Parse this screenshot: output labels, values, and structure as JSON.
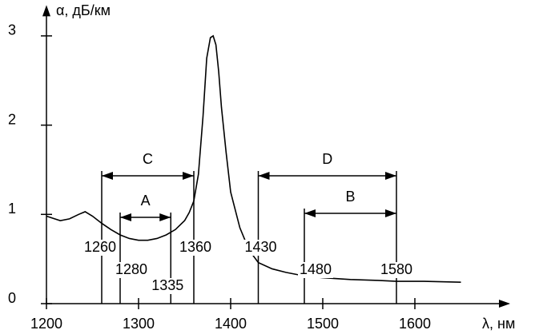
{
  "chart_data": {
    "type": "line",
    "x_label": "λ, нм",
    "y_label": "α, дБ/км",
    "x": [
      1200,
      1215,
      1225,
      1235,
      1242,
      1250,
      1260,
      1270,
      1280,
      1290,
      1300,
      1310,
      1320,
      1330,
      1340,
      1350,
      1355,
      1360,
      1365,
      1370,
      1374,
      1378,
      1381,
      1384,
      1387,
      1390,
      1395,
      1400,
      1410,
      1420,
      1430,
      1445,
      1460,
      1480,
      1500,
      1530,
      1560,
      1580,
      1610,
      1650
    ],
    "series": [
      {
        "color": "#000000",
        "values": [
          0.98,
          0.93,
          0.95,
          1.0,
          1.03,
          0.98,
          0.9,
          0.83,
          0.77,
          0.73,
          0.71,
          0.71,
          0.73,
          0.77,
          0.83,
          0.93,
          1.02,
          1.15,
          1.45,
          2.1,
          2.75,
          2.98,
          3.0,
          2.9,
          2.6,
          2.2,
          1.7,
          1.25,
          0.85,
          0.6,
          0.46,
          0.39,
          0.35,
          0.31,
          0.29,
          0.27,
          0.26,
          0.25,
          0.25,
          0.24
        ]
      }
    ],
    "xlim": [
      1200,
      1700
    ],
    "ylim": [
      0,
      3.3
    ],
    "xticks": [
      1200,
      1300,
      1400,
      1500,
      1600
    ],
    "yticks": [
      0,
      1,
      2,
      3
    ],
    "markers": [
      1260,
      1280,
      1335,
      1360,
      1430,
      1480,
      1580
    ],
    "bands": [
      {
        "label": "C",
        "from": 1260,
        "to": 1360
      },
      {
        "label": "A",
        "from": 1280,
        "to": 1335
      },
      {
        "label": "D",
        "from": 1430,
        "to": 1580
      },
      {
        "label": "B",
        "from": 1480,
        "to": 1580
      }
    ]
  }
}
